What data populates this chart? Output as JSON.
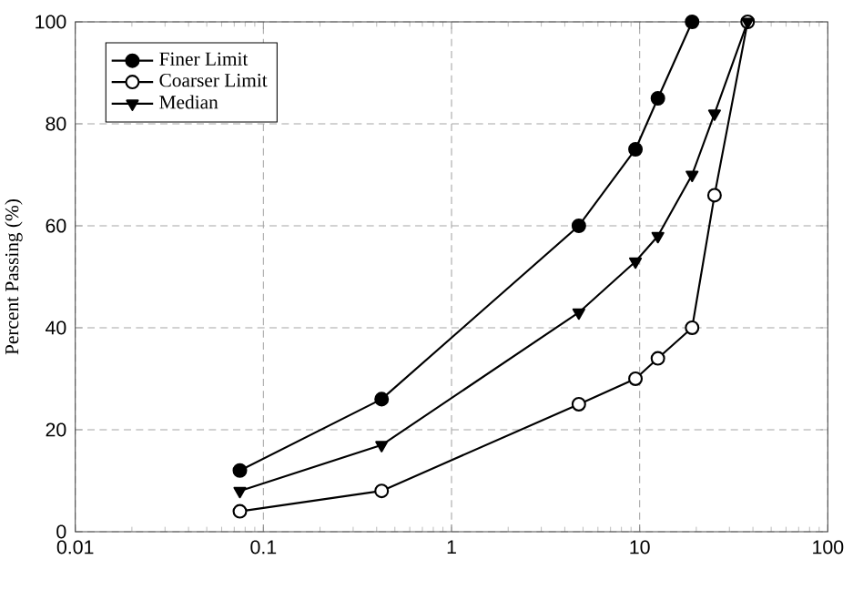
{
  "chart_data": {
    "type": "line",
    "ylabel": "Percent Passing (%)",
    "log": "x",
    "xlim": [
      0.01,
      100
    ],
    "xticks": [
      0.01,
      0.1,
      1,
      10,
      {
        "value": 100,
        "label": "100"
      }
    ],
    "ylim": [
      0,
      100
    ],
    "yticks": [
      0,
      20,
      40,
      60,
      80,
      100
    ],
    "grid": true,
    "legend": "top left",
    "line_style": "solid",
    "series": [
      {
        "name": "Finer Limit",
        "color": "#000000",
        "marker": "circle",
        "x": [
          0.075,
          0.425,
          4.75,
          9.5,
          12.5,
          19
        ],
        "values": [
          12,
          26,
          60,
          75,
          85,
          100
        ]
      },
      {
        "name": "Coarser Limit",
        "color": "#ffffff",
        "marker": "circle",
        "x": [
          0.075,
          0.425,
          4.75,
          9.5,
          12.5,
          19,
          25,
          37.5
        ],
        "values": [
          4,
          8,
          25,
          30,
          34,
          40,
          66,
          100
        ]
      },
      {
        "name": "Median",
        "color": "#000000",
        "marker": "triangle",
        "x": [
          0.075,
          0.425,
          4.75,
          9.5,
          12.5,
          19,
          25,
          37.5
        ],
        "values": [
          8,
          17,
          43,
          53,
          58,
          70,
          82,
          100
        ]
      }
    ]
  }
}
